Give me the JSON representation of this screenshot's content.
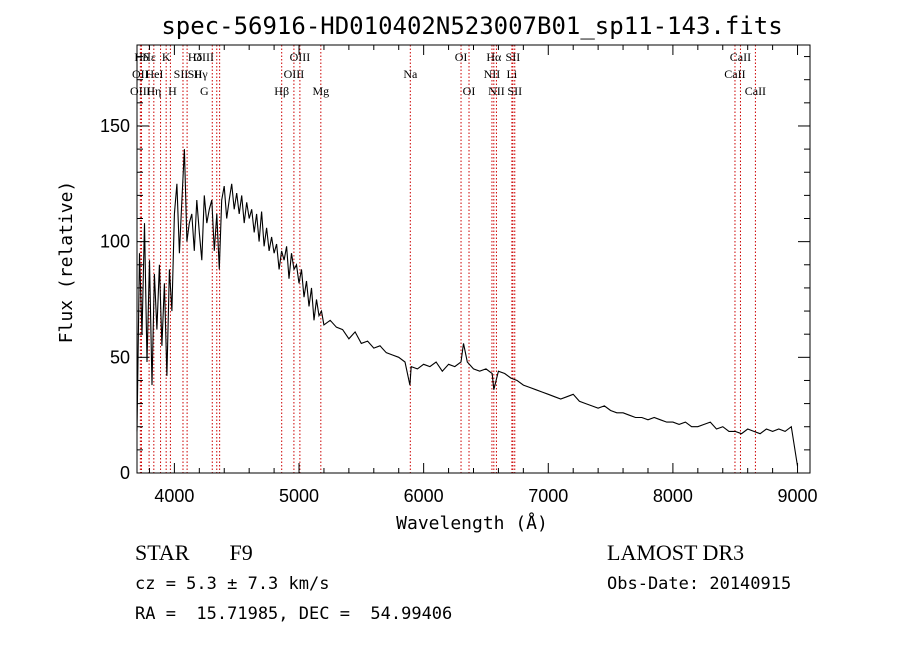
{
  "chart_data": {
    "type": "line",
    "title": "spec-56916-HD010402N523007B01_sp11-143.fits",
    "xlabel": "Wavelength (Å)",
    "ylabel": "Flux (relative)",
    "xlim": [
      3700,
      9100
    ],
    "ylim": [
      0,
      185
    ],
    "xticks": [
      4000,
      5000,
      6000,
      7000,
      8000,
      9000
    ],
    "yticks": [
      0,
      50,
      100,
      150
    ],
    "series": [
      {
        "name": "flux",
        "x": [
          3700,
          3720,
          3740,
          3760,
          3780,
          3800,
          3820,
          3840,
          3860,
          3880,
          3900,
          3920,
          3940,
          3960,
          3980,
          4000,
          4020,
          4040,
          4060,
          4080,
          4100,
          4120,
          4140,
          4160,
          4180,
          4200,
          4220,
          4240,
          4260,
          4280,
          4300,
          4320,
          4340,
          4360,
          4380,
          4400,
          4420,
          4440,
          4460,
          4480,
          4500,
          4520,
          4540,
          4560,
          4580,
          4600,
          4620,
          4640,
          4660,
          4680,
          4700,
          4720,
          4740,
          4760,
          4780,
          4800,
          4820,
          4840,
          4860,
          4880,
          4900,
          4920,
          4940,
          4960,
          4980,
          5000,
          5020,
          5040,
          5060,
          5080,
          5100,
          5120,
          5140,
          5160,
          5180,
          5200,
          5250,
          5300,
          5350,
          5400,
          5450,
          5500,
          5550,
          5600,
          5650,
          5700,
          5750,
          5800,
          5850,
          5890,
          5900,
          5950,
          6000,
          6050,
          6100,
          6150,
          6200,
          6250,
          6300,
          6320,
          6350,
          6400,
          6450,
          6500,
          6550,
          6563,
          6600,
          6650,
          6700,
          6750,
          6800,
          6850,
          6900,
          6950,
          7000,
          7050,
          7100,
          7150,
          7200,
          7250,
          7300,
          7350,
          7400,
          7450,
          7500,
          7550,
          7600,
          7650,
          7700,
          7750,
          7800,
          7850,
          7900,
          7950,
          8000,
          8050,
          8100,
          8150,
          8200,
          8250,
          8300,
          8350,
          8400,
          8450,
          8500,
          8550,
          8600,
          8650,
          8700,
          8750,
          8800,
          8850,
          8900,
          8950,
          9000
        ],
        "values": [
          18,
          95,
          60,
          108,
          48,
          92,
          38,
          86,
          62,
          90,
          55,
          82,
          42,
          88,
          70,
          112,
          125,
          95,
          118,
          140,
          100,
          108,
          112,
          96,
          118,
          104,
          92,
          120,
          108,
          114,
          118,
          96,
          112,
          88,
          118,
          124,
          110,
          118,
          125,
          114,
          121,
          112,
          120,
          108,
          117,
          110,
          114,
          104,
          112,
          100,
          113,
          98,
          106,
          96,
          102,
          95,
          99,
          88,
          96,
          92,
          98,
          84,
          95,
          88,
          90,
          82,
          88,
          76,
          83,
          72,
          80,
          66,
          75,
          68,
          70,
          64,
          66,
          63,
          62,
          58,
          61,
          56,
          57,
          54,
          55,
          52,
          51,
          50,
          48,
          38,
          46,
          45,
          47,
          46,
          48,
          44,
          47,
          46,
          48,
          56,
          48,
          45,
          44,
          45,
          43,
          36,
          44,
          43,
          41,
          40,
          38,
          37,
          36,
          35,
          34,
          33,
          32,
          33,
          34,
          31,
          30,
          29,
          28,
          29,
          27,
          26,
          26,
          25,
          24,
          24,
          23,
          24,
          23,
          22,
          22,
          21,
          22,
          20,
          20,
          21,
          22,
          19,
          20,
          18,
          18,
          17,
          19,
          18,
          17,
          19,
          18,
          19,
          18,
          20,
          3
        ]
      }
    ],
    "line_annotations": [
      {
        "label": "Hδ",
        "wave": 3736,
        "row": 0,
        "dx": 0
      },
      {
        "label": "OII",
        "wave": 3727,
        "row": 1,
        "dx": 0
      },
      {
        "label": "OIII",
        "wave": 3727,
        "row": 2,
        "dx": 0
      },
      {
        "label": "Hε",
        "wave": 3797,
        "row": 0,
        "dx": 0
      },
      {
        "label": "HeI",
        "wave": 3840,
        "row": 1,
        "dx": 0
      },
      {
        "label": "Hη",
        "wave": 3835,
        "row": 2,
        "dx": 0
      },
      {
        "label": "K",
        "wave": 3934,
        "row": 0,
        "dx": 0
      },
      {
        "label": "SII",
        "wave": 4069,
        "row": 1,
        "dx": -2
      },
      {
        "label": "H",
        "wave": 3968,
        "row": 2,
        "dx": 2
      },
      {
        "label": "Hδ",
        "wave": 4102,
        "row": 0,
        "dx": 8
      },
      {
        "label": "SII",
        "wave": 4069,
        "row": 1,
        "dx": 12
      },
      {
        "label": "OIII",
        "wave": 4363,
        "row": 0,
        "dx": -16
      },
      {
        "label": "Hγ",
        "wave": 4340,
        "row": 1,
        "dx": -16
      },
      {
        "label": "G",
        "wave": 4304,
        "row": 2,
        "dx": -8
      },
      {
        "label": "OIII",
        "wave": 5007,
        "row": 0,
        "dx": 0
      },
      {
        "label": "OIII",
        "wave": 4959,
        "row": 1,
        "dx": 0
      },
      {
        "label": "Hβ",
        "wave": 4861,
        "row": 2,
        "dx": 0
      },
      {
        "label": "Mg",
        "wave": 5175,
        "row": 2,
        "dx": 0
      },
      {
        "label": "Na",
        "wave": 5893,
        "row": 1,
        "dx": 0
      },
      {
        "label": "OI",
        "wave": 6300,
        "row": 0,
        "dx": 0
      },
      {
        "label": "OI",
        "wave": 6364,
        "row": 2,
        "dx": 0
      },
      {
        "label": "Hα",
        "wave": 6563,
        "row": 0,
        "dx": 0
      },
      {
        "label": "SII",
        "wave": 6716,
        "row": 0,
        "dx": 0
      },
      {
        "label": "NII",
        "wave": 6548,
        "row": 1,
        "dx": 0
      },
      {
        "label": "Li",
        "wave": 6708,
        "row": 1,
        "dx": 0
      },
      {
        "label": "NII",
        "wave": 6584,
        "row": 2,
        "dx": 0
      },
      {
        "label": "SII",
        "wave": 6731,
        "row": 2,
        "dx": 0
      },
      {
        "label": "CaII",
        "wave": 8542,
        "row": 0,
        "dx": 0
      },
      {
        "label": "CaII",
        "wave": 8498,
        "row": 1,
        "dx": 0
      },
      {
        "label": "CaII",
        "wave": 8662,
        "row": 2,
        "dx": 0
      }
    ],
    "line_markers": [
      3727,
      3736,
      3797,
      3835,
      3889,
      3934,
      3968,
      4069,
      4102,
      4304,
      4340,
      4363,
      4861,
      4959,
      5007,
      5175,
      5893,
      6300,
      6364,
      6548,
      6563,
      6584,
      6708,
      6716,
      6731,
      8498,
      8542,
      8662
    ],
    "marker_color": "#cc0000"
  },
  "info": {
    "object_class": "STAR",
    "subclass": "F9",
    "cz": "cz = 5.3 ± 7.3 km/s",
    "radec": "RA =  15.71985, DEC =  54.99406",
    "survey": "LAMOST DR3",
    "obs_date": "Obs-Date: 20140915"
  }
}
